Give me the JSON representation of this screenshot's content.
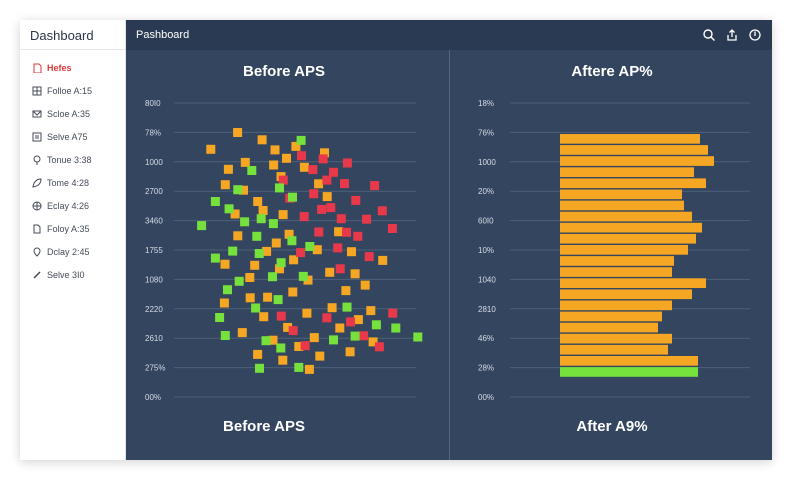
{
  "sidebar": {
    "title": "Dashboard",
    "items": [
      {
        "label": "Hefes",
        "icon": "document-icon",
        "active": true
      },
      {
        "label": "Folloe A:15",
        "icon": "grid-icon"
      },
      {
        "label": "Scloe A:35",
        "icon": "mail-icon"
      },
      {
        "label": "Selve A75",
        "icon": "list-icon"
      },
      {
        "label": "Tonue 3:38",
        "icon": "balloon-icon"
      },
      {
        "label": "Tome 4:28",
        "icon": "leaf-icon"
      },
      {
        "label": "Eclay 4:26",
        "icon": "compass-icon"
      },
      {
        "label": "Foloy A:35",
        "icon": "file-icon"
      },
      {
        "label": "Dclay 2:45",
        "icon": "pin-icon"
      },
      {
        "label": "Selve 3I0",
        "icon": "pen-icon"
      }
    ]
  },
  "topbar": {
    "title": "Pashboard",
    "icons": [
      "search-icon",
      "export-icon",
      "power-icon"
    ]
  },
  "colors": {
    "background": "#34465f",
    "grid": "#4d6079",
    "orange": "#f5a623",
    "red": "#e8394a",
    "green": "#76e03c",
    "text": "#ffffff",
    "tick": "#d5dbe4"
  },
  "chart_data": [
    {
      "type": "scatter",
      "title": "Before APS",
      "footer": "Before APS",
      "ytick_labels": [
        "80I0",
        "78%",
        "1000",
        "2700",
        "3460",
        "1755",
        "1080",
        "2220",
        "2610",
        "275%",
        "00%"
      ],
      "series": [
        {
          "name": "orange",
          "color": "#f5a623",
          "points": [
            [
              33.1,
              91.2
            ],
            [
              18.2,
              85.4
            ],
            [
              53.9,
              85.2
            ],
            [
              60.3,
              82.3
            ],
            [
              65.5,
              86.4
            ],
            [
              46.7,
              88.7
            ],
            [
              53.1,
              80.0
            ],
            [
              28.0,
              78.5
            ],
            [
              36.4,
              71.3
            ],
            [
              44.3,
              67.4
            ],
            [
              47.3,
              64.3
            ],
            [
              26.3,
              73.2
            ],
            [
              57.2,
              76.0
            ],
            [
              70.2,
              79.2
            ],
            [
              78.1,
              73.5
            ],
            [
              82.9,
              69.1
            ],
            [
              58.4,
              62.9
            ],
            [
              61.7,
              56.1
            ],
            [
              54.6,
              53.1
            ],
            [
              49.2,
              50.2
            ],
            [
              42.6,
              45.4
            ],
            [
              39.9,
              41.2
            ],
            [
              64.2,
              47.3
            ],
            [
              77.4,
              50.8
            ],
            [
              89.2,
              57.0
            ],
            [
              96.4,
              50.1
            ],
            [
              98.4,
              42.5
            ],
            [
              93.3,
              36.7
            ],
            [
              85.6,
              30.8
            ],
            [
              71.6,
              28.9
            ],
            [
              60.9,
              24.0
            ],
            [
              52.8,
              19.6
            ],
            [
              67.1,
              17.4
            ],
            [
              78.8,
              14.1
            ],
            [
              73.0,
              9.5
            ],
            [
              58.2,
              12.7
            ],
            [
              44.2,
              14.7
            ],
            [
              35.7,
              22.2
            ],
            [
              49.8,
              34.4
            ],
            [
              63.8,
              36.2
            ],
            [
              72.2,
              40.3
            ],
            [
              84.3,
              43.0
            ],
            [
              33.2,
              55.6
            ],
            [
              26.1,
              45.8
            ],
            [
              100.2,
              26.7
            ],
            [
              107.1,
              29.8
            ],
            [
              104.0,
              38.6
            ],
            [
              113.7,
              47.1
            ],
            [
              89.9,
              23.8
            ],
            [
              56.4,
              44.2
            ],
            [
              40.1,
              34.2
            ],
            [
              47.6,
              27.7
            ],
            [
              25.8,
              32.4
            ],
            [
              31.7,
              63.1
            ],
            [
              37.4,
              80.9
            ],
            [
              81.4,
              84.2
            ],
            [
              75.7,
              20.5
            ],
            [
              95.6,
              15.6
            ],
            [
              108.4,
              19.0
            ]
          ]
        },
        {
          "name": "red",
          "color": "#e8394a",
          "points": [
            [
              68.6,
              83.2
            ],
            [
              74.9,
              78.4
            ],
            [
              80.6,
              82.1
            ],
            [
              86.4,
              77.5
            ],
            [
              92.5,
              73.6
            ],
            [
              84.9,
              65.3
            ],
            [
              90.7,
              61.5
            ],
            [
              98.8,
              67.8
            ],
            [
              104.8,
              61.3
            ],
            [
              99.9,
              55.4
            ],
            [
              88.7,
              51.4
            ],
            [
              78.2,
              56.9
            ],
            [
              70.1,
              62.2
            ],
            [
              62.1,
              68.6
            ],
            [
              75.4,
              70.1
            ],
            [
              82.7,
              74.8
            ],
            [
              94.1,
              80.7
            ],
            [
              109.2,
              72.9
            ],
            [
              113.5,
              64.2
            ],
            [
              119.1,
              58.1
            ],
            [
              106.2,
              48.4
            ],
            [
              90.1,
              44.2
            ],
            [
              95.9,
              25.9
            ],
            [
              103.1,
              21.1
            ],
            [
              82.7,
              27.3
            ],
            [
              70.6,
              17.7
            ],
            [
              64.0,
              22.9
            ],
            [
              57.4,
              27.9
            ],
            [
              111.9,
              17.3
            ],
            [
              119.3,
              28.9
            ],
            [
              58.5,
              74.8
            ],
            [
              68.1,
              49.8
            ],
            [
              79.8,
              64.7
            ],
            [
              93.6,
              56.8
            ]
          ]
        },
        {
          "name": "green",
          "color": "#76e03c",
          "points": [
            [
              13.1,
              59.1
            ],
            [
              20.8,
              67.4
            ],
            [
              33.2,
              71.5
            ],
            [
              41.0,
              78.1
            ],
            [
              56.4,
              72.1
            ],
            [
              28.4,
              64.9
            ],
            [
              37.0,
              60.4
            ],
            [
              43.8,
              55.4
            ],
            [
              53.0,
              59.8
            ],
            [
              63.3,
              53.9
            ],
            [
              57.3,
              46.3
            ],
            [
              52.5,
              41.5
            ],
            [
              69.6,
              41.6
            ],
            [
              73.2,
              51.9
            ],
            [
              30.4,
              50.3
            ],
            [
              45.1,
              49.5
            ],
            [
              20.8,
              47.9
            ],
            [
              34.0,
              39.9
            ],
            [
              27.5,
              37.0
            ],
            [
              43.1,
              30.7
            ],
            [
              48.9,
              19.4
            ],
            [
              57.1,
              16.9
            ],
            [
              45.3,
              9.9
            ],
            [
              26.3,
              21.2
            ],
            [
              23.1,
              27.4
            ],
            [
              86.4,
              19.7
            ],
            [
              93.9,
              31.0
            ],
            [
              110.2,
              24.9
            ],
            [
              121.0,
              23.8
            ],
            [
              133.2,
              20.7
            ],
            [
              63.6,
              68.9
            ],
            [
              68.4,
              88.5
            ],
            [
              46.2,
              61.5
            ],
            [
              55.6,
              33.6
            ],
            [
              67.1,
              10.2
            ],
            [
              98.4,
              21.0
            ]
          ]
        }
      ]
    },
    {
      "type": "bar",
      "orientation": "horizontal",
      "title": "Aftere AP%",
      "footer": "After A9%",
      "ytick_labels": [
        "18%",
        "76%",
        "1000",
        "20%",
        "60I0",
        "10%",
        "1040",
        "2810",
        "46%",
        "28%",
        "00%"
      ],
      "values": [
        70,
        74,
        77,
        67,
        73,
        61,
        62,
        66,
        71,
        68,
        64,
        57,
        56,
        73,
        66,
        56,
        51,
        49,
        56,
        54,
        69,
        69
      ],
      "colors": [
        "#f5a623",
        "#f5a623",
        "#f5a623",
        "#f5a623",
        "#f5a623",
        "#f5a623",
        "#f5a623",
        "#f5a623",
        "#f5a623",
        "#f5a623",
        "#f5a623",
        "#f5a623",
        "#f5a623",
        "#f5a623",
        "#f5a623",
        "#f5a623",
        "#f5a623",
        "#f5a623",
        "#f5a623",
        "#f5a623",
        "#f5a623",
        "#76e03c"
      ]
    }
  ]
}
